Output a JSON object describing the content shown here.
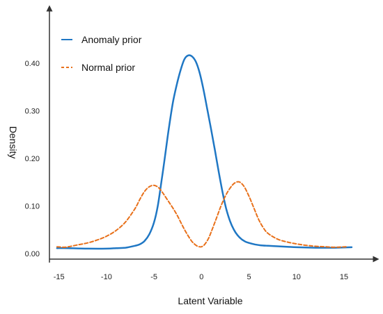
{
  "chart_data": {
    "type": "line",
    "title": "",
    "xlabel": "Latent Variable",
    "ylabel": "Density",
    "xlim": [
      -16,
      18
    ],
    "ylim": [
      -0.012,
      0.515
    ],
    "x_ticks": [
      -15,
      -10,
      -5,
      0,
      5,
      10,
      15
    ],
    "x_tick_labels": [
      "-15",
      "-10",
      "-5",
      "0",
      "5",
      "10",
      "15"
    ],
    "y_ticks": [
      0.0,
      0.1,
      0.2,
      0.3,
      0.4
    ],
    "y_tick_labels": [
      "0.00",
      "0.10",
      "0.20",
      "0.30",
      "0.40"
    ],
    "grid": false,
    "legend_position": "top-left",
    "series": [
      {
        "name": "Anomaly prior",
        "color": "#1f77c4",
        "style": "solid",
        "x": [
          -15.2,
          -14,
          -12,
          -10,
          -9,
          -8,
          -7,
          -6.5,
          -6,
          -5.5,
          -5,
          -4.6,
          -4.2,
          -3.8,
          -3.4,
          -3,
          -2.6,
          -2.2,
          -1.8,
          -1.4,
          -1.0,
          -0.6,
          -0.2,
          0.2,
          0.6,
          1.0,
          1.4,
          1.8,
          2.2,
          2.6,
          3.0,
          3.4,
          3.8,
          4.2,
          4.6,
          5.0,
          5.6,
          6.2,
          7,
          8,
          9,
          10,
          12,
          14,
          15.8
        ],
        "y": [
          0.011,
          0.011,
          0.01,
          0.01,
          0.011,
          0.012,
          0.016,
          0.019,
          0.026,
          0.04,
          0.065,
          0.1,
          0.153,
          0.21,
          0.268,
          0.318,
          0.355,
          0.385,
          0.408,
          0.416,
          0.414,
          0.403,
          0.38,
          0.345,
          0.304,
          0.262,
          0.218,
          0.173,
          0.13,
          0.094,
          0.068,
          0.05,
          0.038,
          0.03,
          0.025,
          0.022,
          0.019,
          0.017,
          0.016,
          0.015,
          0.014,
          0.013,
          0.012,
          0.012,
          0.013
        ]
      },
      {
        "name": "Normal prior",
        "color": "#e8701a",
        "style": "dashed",
        "x": [
          -15.2,
          -14.5,
          -14,
          -13,
          -12,
          -11,
          -10,
          -9,
          -8,
          -7,
          -6.5,
          -6,
          -5.5,
          -5,
          -4.5,
          -4,
          -3.5,
          -3,
          -2.5,
          -2,
          -1.5,
          -1,
          -0.5,
          -0.2,
          0,
          0.3,
          0.7,
          1,
          1.5,
          2,
          2.5,
          3,
          3.5,
          4,
          4.5,
          5,
          5.5,
          6,
          6.5,
          7,
          8,
          9,
          10,
          11,
          12,
          13,
          14,
          15.2
        ],
        "y": [
          0.014,
          0.013,
          0.014,
          0.018,
          0.022,
          0.028,
          0.036,
          0.048,
          0.066,
          0.094,
          0.113,
          0.13,
          0.14,
          0.143,
          0.138,
          0.125,
          0.11,
          0.095,
          0.078,
          0.058,
          0.04,
          0.025,
          0.016,
          0.014,
          0.014,
          0.018,
          0.03,
          0.044,
          0.07,
          0.097,
          0.12,
          0.137,
          0.148,
          0.15,
          0.14,
          0.12,
          0.096,
          0.072,
          0.054,
          0.042,
          0.03,
          0.024,
          0.02,
          0.017,
          0.015,
          0.014,
          0.013,
          0.014
        ]
      }
    ]
  }
}
